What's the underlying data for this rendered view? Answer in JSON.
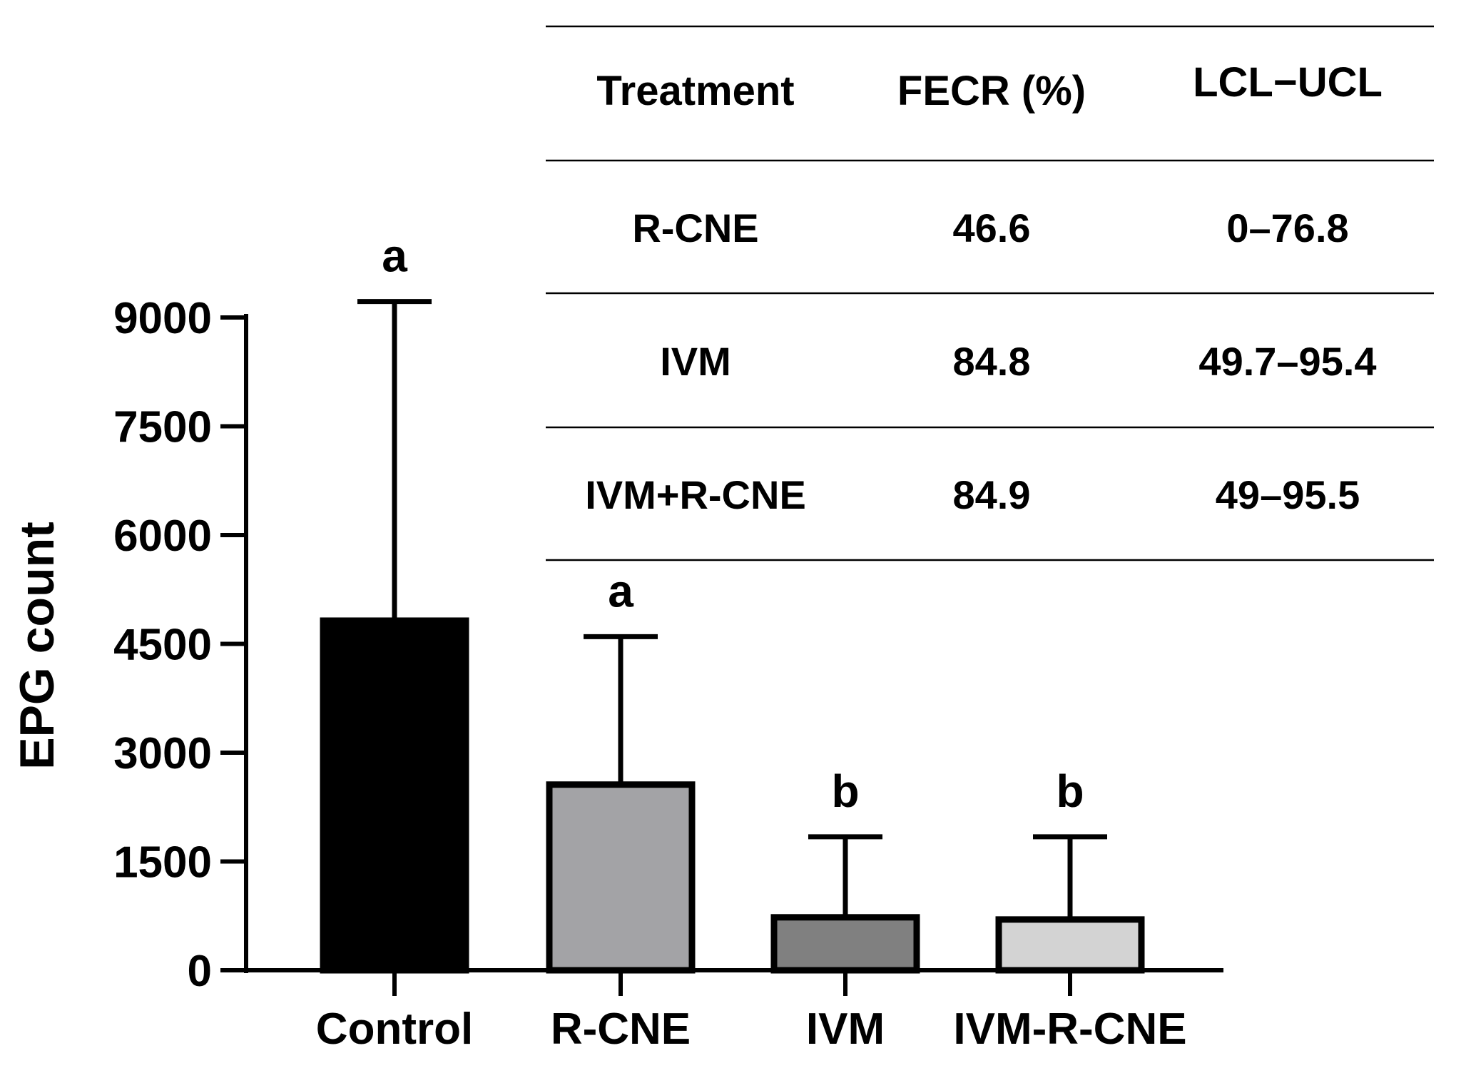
{
  "chart_data": {
    "type": "bar",
    "categories": [
      "Control",
      "R-CNE",
      "IVM",
      "IVM-R-CNE"
    ],
    "values": [
      4820,
      2560,
      730,
      700
    ],
    "error_upper": [
      9220,
      4600,
      1840,
      1840
    ],
    "significance_letters": [
      "a",
      "a",
      "b",
      "b"
    ],
    "bar_colors": [
      "#000000",
      "#a3a3a6",
      "#808080",
      "#d3d3d3"
    ],
    "xlabel": "",
    "ylabel": "EPG count",
    "ylim": [
      0,
      9000
    ],
    "yticks": [
      0,
      1500,
      3000,
      4500,
      6000,
      7500,
      9000
    ],
    "ytick_labels": [
      "0",
      "1500",
      "3000",
      "4500",
      "6000",
      "7500",
      "9000"
    ],
    "grid": false
  },
  "table": {
    "headers": [
      "Treatment",
      "FECR (%)",
      "LCL−UCL"
    ],
    "rows": [
      [
        "R-CNE",
        "46.6",
        "0–76.8"
      ],
      [
        "IVM",
        "84.8",
        "49.7–95.4"
      ],
      [
        "IVM+R-CNE",
        "84.9",
        "49–95.5"
      ]
    ]
  }
}
